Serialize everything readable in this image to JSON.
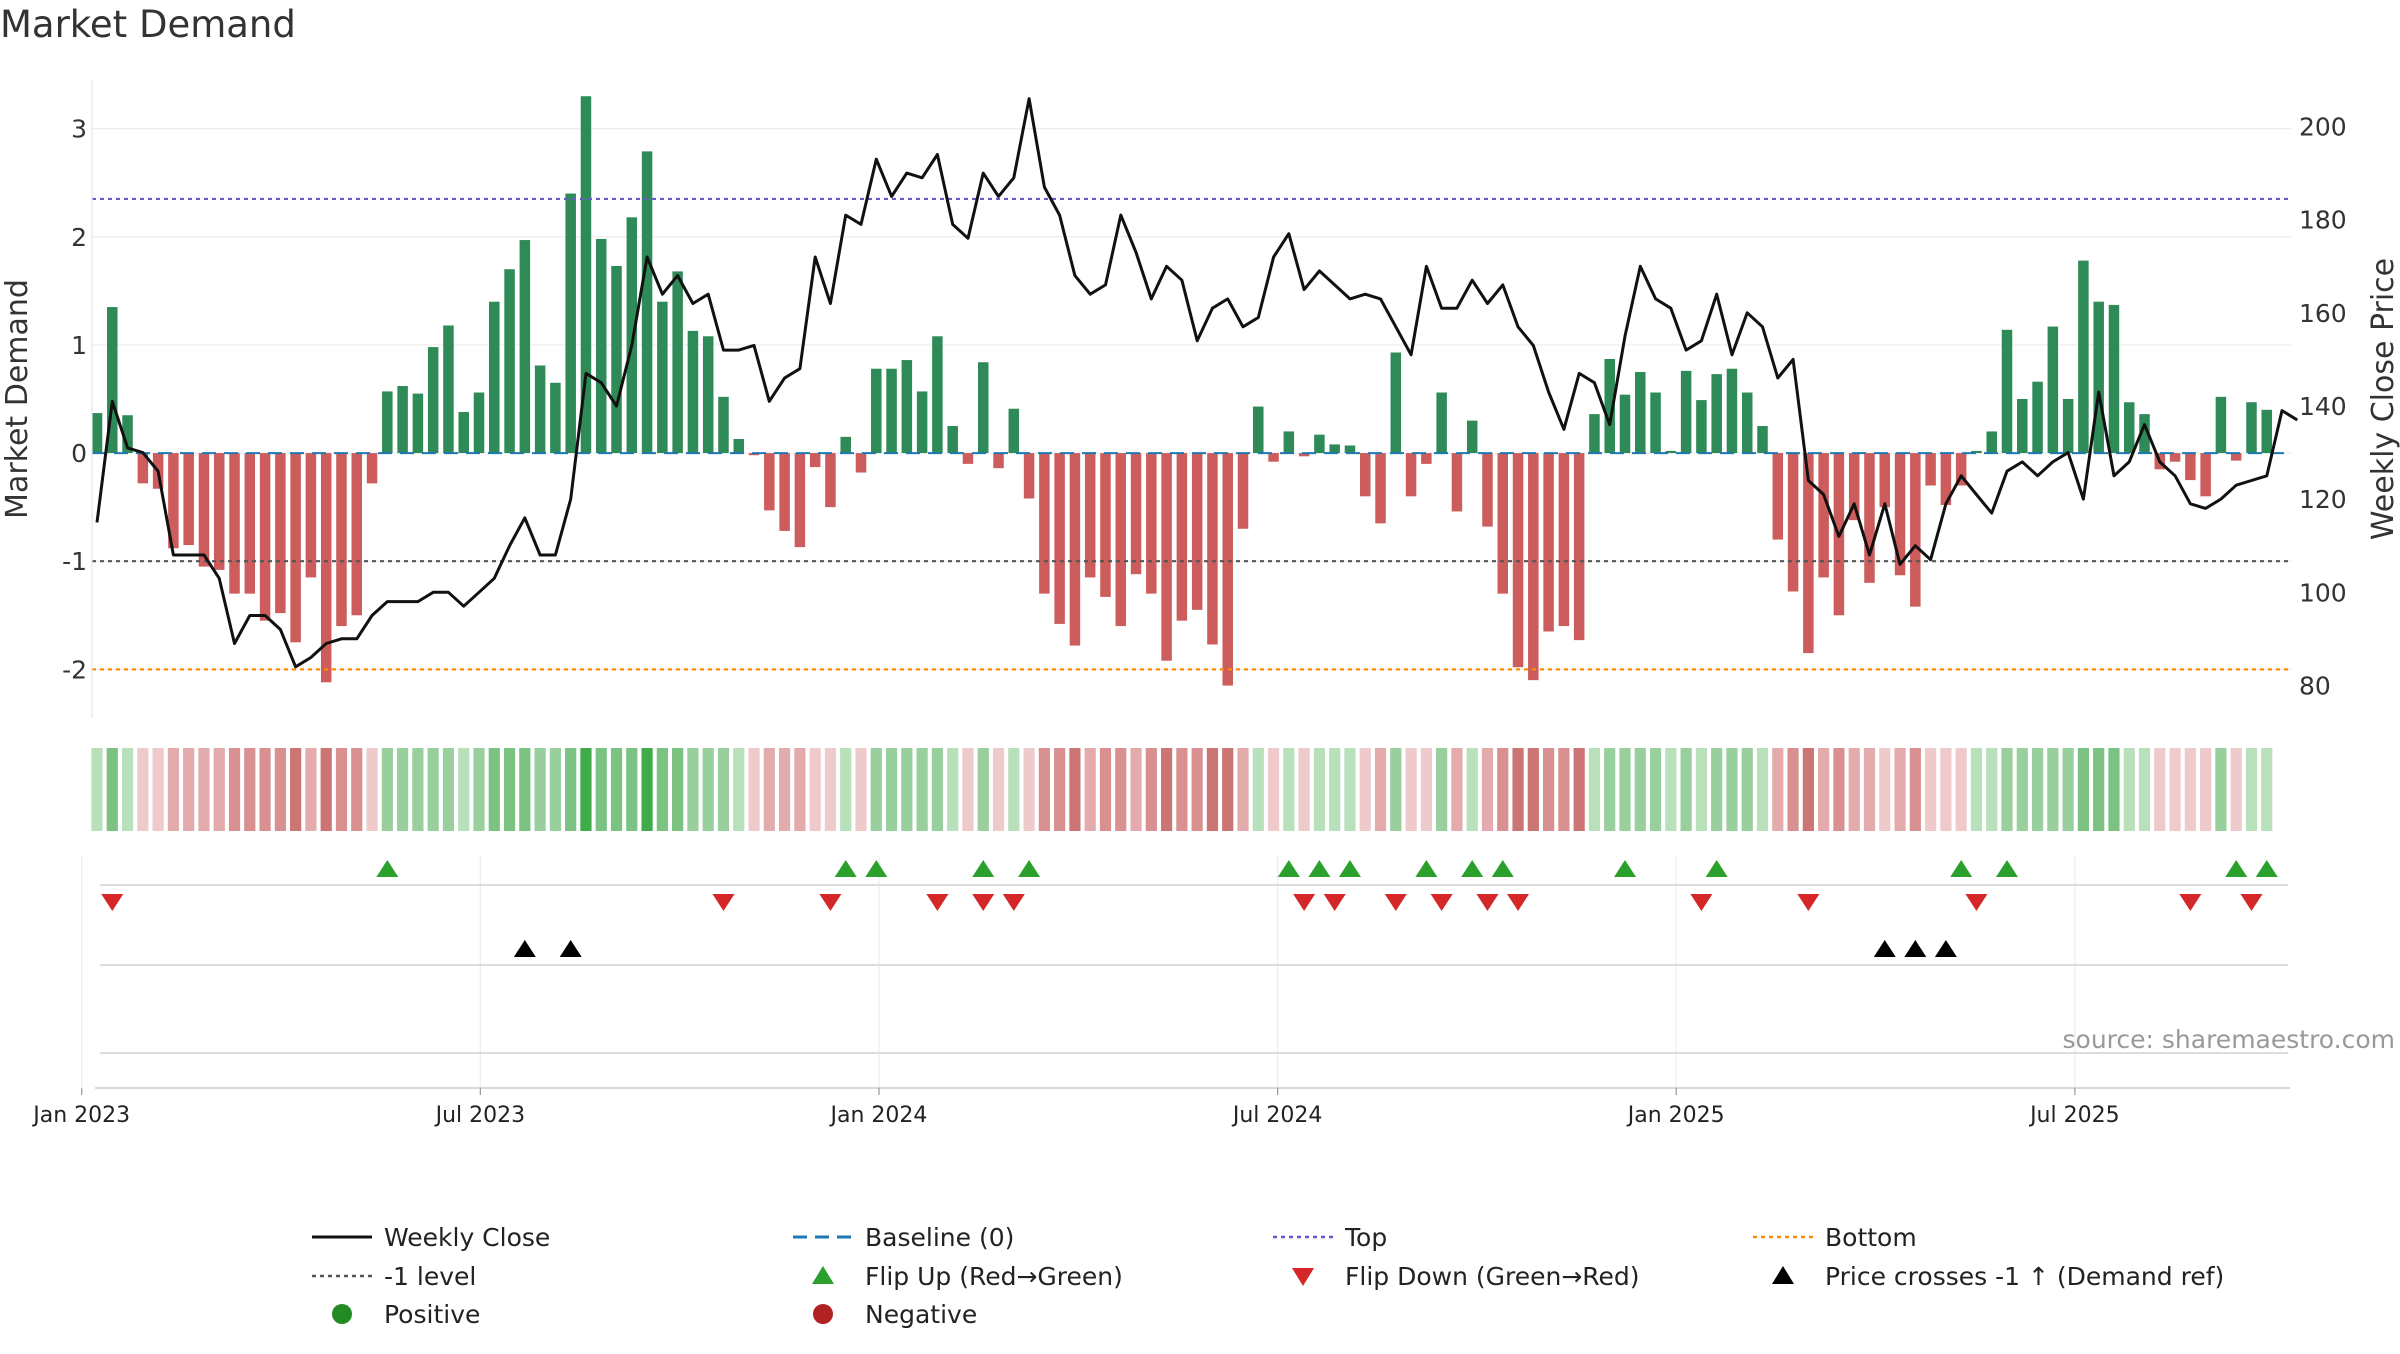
{
  "chart_data": {
    "type": "bar",
    "title": "Market Demand",
    "source": "source: sharemaestro.com",
    "ylabel_left": "Market Demand",
    "ylabel_right": "Weekly Close Price",
    "ylim_left": [
      -2.45,
      3.45
    ],
    "ylim_right": [
      73,
      210
    ],
    "yticks_left": [
      -2,
      -1,
      0,
      1,
      2,
      3
    ],
    "yticks_right": [
      80,
      100,
      120,
      140,
      160,
      180,
      200
    ],
    "reference_levels": {
      "top": 2.35,
      "minus_one": -1,
      "bottom": -2,
      "baseline": 0
    },
    "x_start_week_offset": -1,
    "weeks_per_month": 4.348,
    "xticks": [
      {
        "label": "Jan 2023",
        "month_index": 0
      },
      {
        "label": "Jul 2023",
        "month_index": 6
      },
      {
        "label": "Jan 2024",
        "month_index": 12
      },
      {
        "label": "Jul 2024",
        "month_index": 18
      },
      {
        "label": "Jan 2025",
        "month_index": 24
      },
      {
        "label": "Jul 2025",
        "month_index": 30
      }
    ],
    "demand": [
      0.37,
      1.35,
      0.35,
      -0.28,
      -0.33,
      -0.88,
      -0.85,
      -1.05,
      -1.08,
      -1.3,
      -1.3,
      -1.55,
      -1.48,
      -1.75,
      -1.15,
      -2.12,
      -1.6,
      -1.5,
      -0.28,
      0.57,
      0.62,
      0.55,
      0.98,
      1.18,
      0.38,
      0.56,
      1.4,
      1.7,
      1.97,
      0.81,
      0.65,
      2.4,
      3.3,
      1.98,
      1.73,
      2.18,
      2.79,
      1.4,
      1.68,
      1.13,
      1.08,
      0.52,
      0.13,
      -0.02,
      -0.53,
      -0.72,
      -0.87,
      -0.13,
      -0.5,
      0.15,
      -0.18,
      0.78,
      0.78,
      0.86,
      0.57,
      1.08,
      0.25,
      -0.1,
      0.84,
      -0.14,
      0.41,
      -0.42,
      -1.3,
      -1.58,
      -1.78,
      -1.15,
      -1.33,
      -1.6,
      -1.12,
      -1.3,
      -1.92,
      -1.55,
      -1.45,
      -1.77,
      -2.15,
      -0.7,
      0.43,
      -0.08,
      0.2,
      -0.03,
      0.17,
      0.08,
      0.07,
      -0.4,
      -0.65,
      0.93,
      -0.4,
      -0.1,
      0.56,
      -0.54,
      0.3,
      -0.68,
      -1.3,
      -1.98,
      -2.1,
      -1.65,
      -1.6,
      -1.73,
      0.36,
      0.87,
      0.54,
      0.75,
      0.56,
      0.02,
      0.76,
      0.49,
      0.73,
      0.78,
      0.56,
      0.25,
      -0.8,
      -1.28,
      -1.85,
      -1.15,
      -1.5,
      -0.62,
      -1.2,
      -0.5,
      -1.13,
      -1.42,
      -0.3,
      -0.48,
      -0.3,
      0.02,
      0.2,
      1.14,
      0.5,
      0.66,
      1.17,
      0.5,
      1.78,
      1.4,
      1.37,
      0.47,
      0.36,
      -0.15,
      -0.08,
      -0.25,
      -0.4,
      0.52,
      -0.07,
      0.47,
      0.4
    ],
    "weekly_close": [
      115,
      141,
      131,
      130,
      126,
      108,
      108,
      108,
      103,
      89,
      95,
      95,
      92,
      84,
      86,
      89,
      90,
      90,
      95,
      98,
      98,
      98,
      100,
      100,
      97,
      100,
      103,
      110,
      116,
      108,
      108,
      120,
      147,
      145,
      140,
      153,
      172,
      164,
      168,
      162,
      164,
      152,
      152,
      153,
      141,
      146,
      148,
      172,
      162,
      181,
      179,
      193,
      185,
      190,
      189,
      194,
      179,
      176,
      190,
      185,
      189,
      206,
      187,
      181,
      168,
      164,
      166,
      181,
      173,
      163,
      170,
      167,
      154,
      161,
      163,
      157,
      159,
      172,
      177,
      165,
      169,
      166,
      163,
      164,
      163,
      157,
      151,
      170,
      161,
      161,
      167,
      162,
      166,
      157,
      153,
      143,
      135,
      147,
      145,
      136,
      155,
      170,
      163,
      161,
      152,
      154,
      164,
      151,
      160,
      157,
      146,
      150,
      124,
      121,
      112,
      119,
      108,
      119,
      106,
      110,
      107,
      119,
      125,
      121,
      117,
      126,
      128,
      125,
      128,
      130,
      120,
      143,
      125,
      128,
      136,
      128,
      125,
      119,
      118,
      120,
      123,
      124,
      125,
      139,
      137
    ],
    "heat_color_bins": [
      "#40ab4b",
      "#7cc282",
      "#98cf9d",
      "#b8e0bb",
      "#efcaca",
      "#e3abab",
      "#d89090",
      "#cc7575"
    ],
    "series": [
      {
        "name": "Positive",
        "color": "#2e8b57"
      },
      {
        "name": "Negative",
        "color": "#cd5c5c"
      },
      {
        "name": "Weekly Close",
        "color": "#111111"
      }
    ],
    "flip_up": [
      19,
      49,
      51,
      58,
      61,
      78,
      80,
      82,
      87,
      90,
      92,
      100,
      106,
      122,
      125,
      140,
      142
    ],
    "flip_down": [
      1,
      41,
      48,
      55,
      58,
      60,
      79,
      81,
      85,
      88,
      91,
      93,
      105,
      112,
      123,
      137,
      141
    ],
    "price_cross": [
      28,
      31,
      117,
      119,
      121
    ],
    "legend": [
      {
        "label": "Weekly Close",
        "kind": "line",
        "color": "#111111"
      },
      {
        "label": "Baseline (0)",
        "kind": "dash",
        "color": "#1f77b4"
      },
      {
        "label": "Top",
        "kind": "dot",
        "color": "#6a5acd"
      },
      {
        "label": "Bottom",
        "kind": "dot",
        "color": "#ff8c00"
      },
      {
        "label": "-1 level",
        "kind": "dot",
        "color": "#555555"
      },
      {
        "label": "Flip Up (Red→Green)",
        "kind": "up",
        "color": "#2ca02c"
      },
      {
        "label": "Flip Down (Green→Red)",
        "kind": "down",
        "color": "#d62728"
      },
      {
        "label": "Price crosses -1 ↑ (Demand ref)",
        "kind": "up",
        "color": "#000000"
      },
      {
        "label": "Positive",
        "kind": "circle",
        "color": "#228b22"
      },
      {
        "label": "Negative",
        "kind": "circle",
        "color": "#b22222"
      }
    ]
  }
}
